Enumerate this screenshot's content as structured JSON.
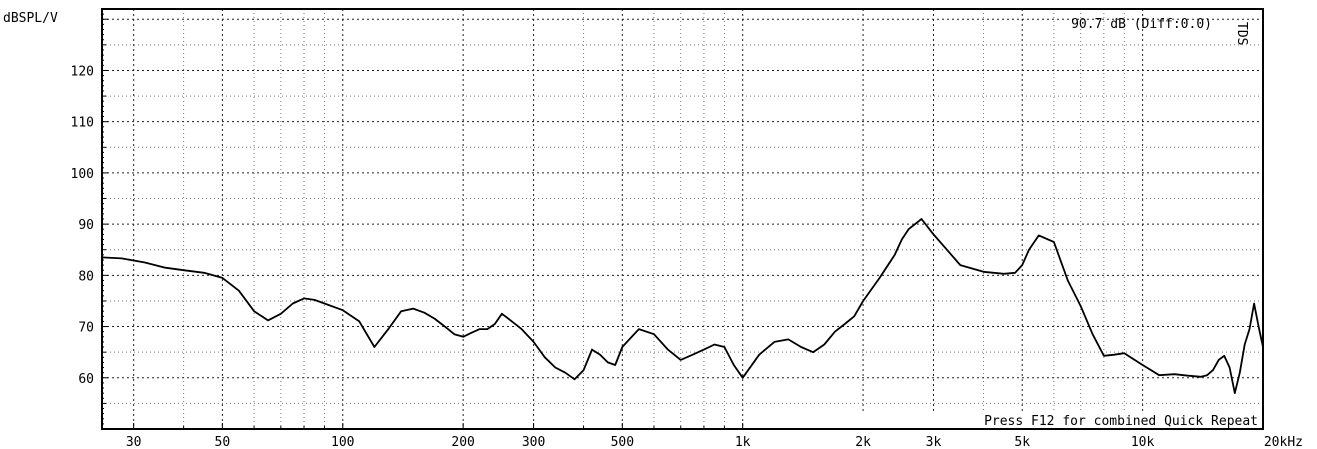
{
  "chart_data": {
    "type": "line",
    "ylabel": "dBSPL/V",
    "x_unit": "kHz",
    "x_scale": "log",
    "xlim": [
      25,
      20000
    ],
    "ylim": [
      50,
      132
    ],
    "grid": true,
    "y_ticks": [
      60,
      70,
      80,
      90,
      100,
      110,
      120
    ],
    "x_ticks": [
      {
        "v": 30,
        "t": "30"
      },
      {
        "v": 50,
        "t": "50"
      },
      {
        "v": 100,
        "t": "100"
      },
      {
        "v": 200,
        "t": "200"
      },
      {
        "v": 300,
        "t": "300"
      },
      {
        "v": 500,
        "t": "500"
      },
      {
        "v": 1000,
        "t": "1k"
      },
      {
        "v": 2000,
        "t": "2k"
      },
      {
        "v": 3000,
        "t": "3k"
      },
      {
        "v": 5000,
        "t": "5k"
      },
      {
        "v": 10000,
        "t": "10k"
      },
      {
        "v": 20000,
        "t": "20kHz"
      }
    ],
    "annotation": "90.7 dB (Diff:0.0)",
    "side_label": "TDS",
    "footer": "Press F12 for combined Quick Repeat",
    "series": [
      {
        "x": [
          25,
          28,
          32,
          36,
          40,
          45,
          50,
          55,
          60,
          65,
          70,
          75,
          80,
          85,
          90,
          100,
          110,
          120,
          130,
          140,
          150,
          160,
          170,
          180,
          190,
          200,
          210,
          220,
          230,
          240,
          250,
          260,
          280,
          300,
          320,
          340,
          360,
          380,
          400,
          420,
          440,
          460,
          480,
          500,
          550,
          600,
          650,
          700,
          750,
          800,
          850,
          900,
          950,
          1000,
          1100,
          1200,
          1300,
          1400,
          1500,
          1600,
          1700,
          1800,
          1900,
          2000,
          2200,
          2400,
          2500,
          2600,
          2800,
          3000,
          3200,
          3500,
          4000,
          4500,
          4800,
          5000,
          5200,
          5500,
          6000,
          6500,
          7000,
          7500,
          8000,
          8500,
          9000,
          10000,
          11000,
          12000,
          13000,
          14000,
          14500,
          15000,
          15500,
          16000,
          16500,
          17000,
          17500,
          18000,
          18500,
          19000,
          19500,
          20000
        ],
        "y": [
          83.5,
          83.3,
          82.5,
          81.5,
          81,
          80.5,
          79.5,
          77,
          73,
          71.2,
          72.5,
          74.5,
          75.5,
          75.2,
          74.5,
          73.2,
          71,
          66,
          69.5,
          73,
          73.5,
          72.7,
          71.5,
          70,
          68.5,
          68,
          68.8,
          69.5,
          69.5,
          70.5,
          72.5,
          71.5,
          69.5,
          67,
          64,
          62,
          61,
          59.7,
          61.5,
          65.5,
          64.5,
          63,
          62.5,
          66,
          69.5,
          68.5,
          65.5,
          63.5,
          64.5,
          65.5,
          66.5,
          66,
          62.5,
          60,
          64.5,
          67,
          67.5,
          66,
          65,
          66.5,
          69,
          70.5,
          72,
          75,
          79.5,
          84,
          87,
          89,
          91,
          88,
          85.5,
          82,
          80.7,
          80.3,
          80.5,
          82,
          85,
          87.8,
          86.5,
          79,
          74,
          68.5,
          64.3,
          64.5,
          64.8,
          62.5,
          60.5,
          60.7,
          60.4,
          60.2,
          60.5,
          61.5,
          63.5,
          64.3,
          62,
          57,
          61,
          66.5,
          69.5,
          74.5,
          70,
          66
        ]
      }
    ]
  }
}
